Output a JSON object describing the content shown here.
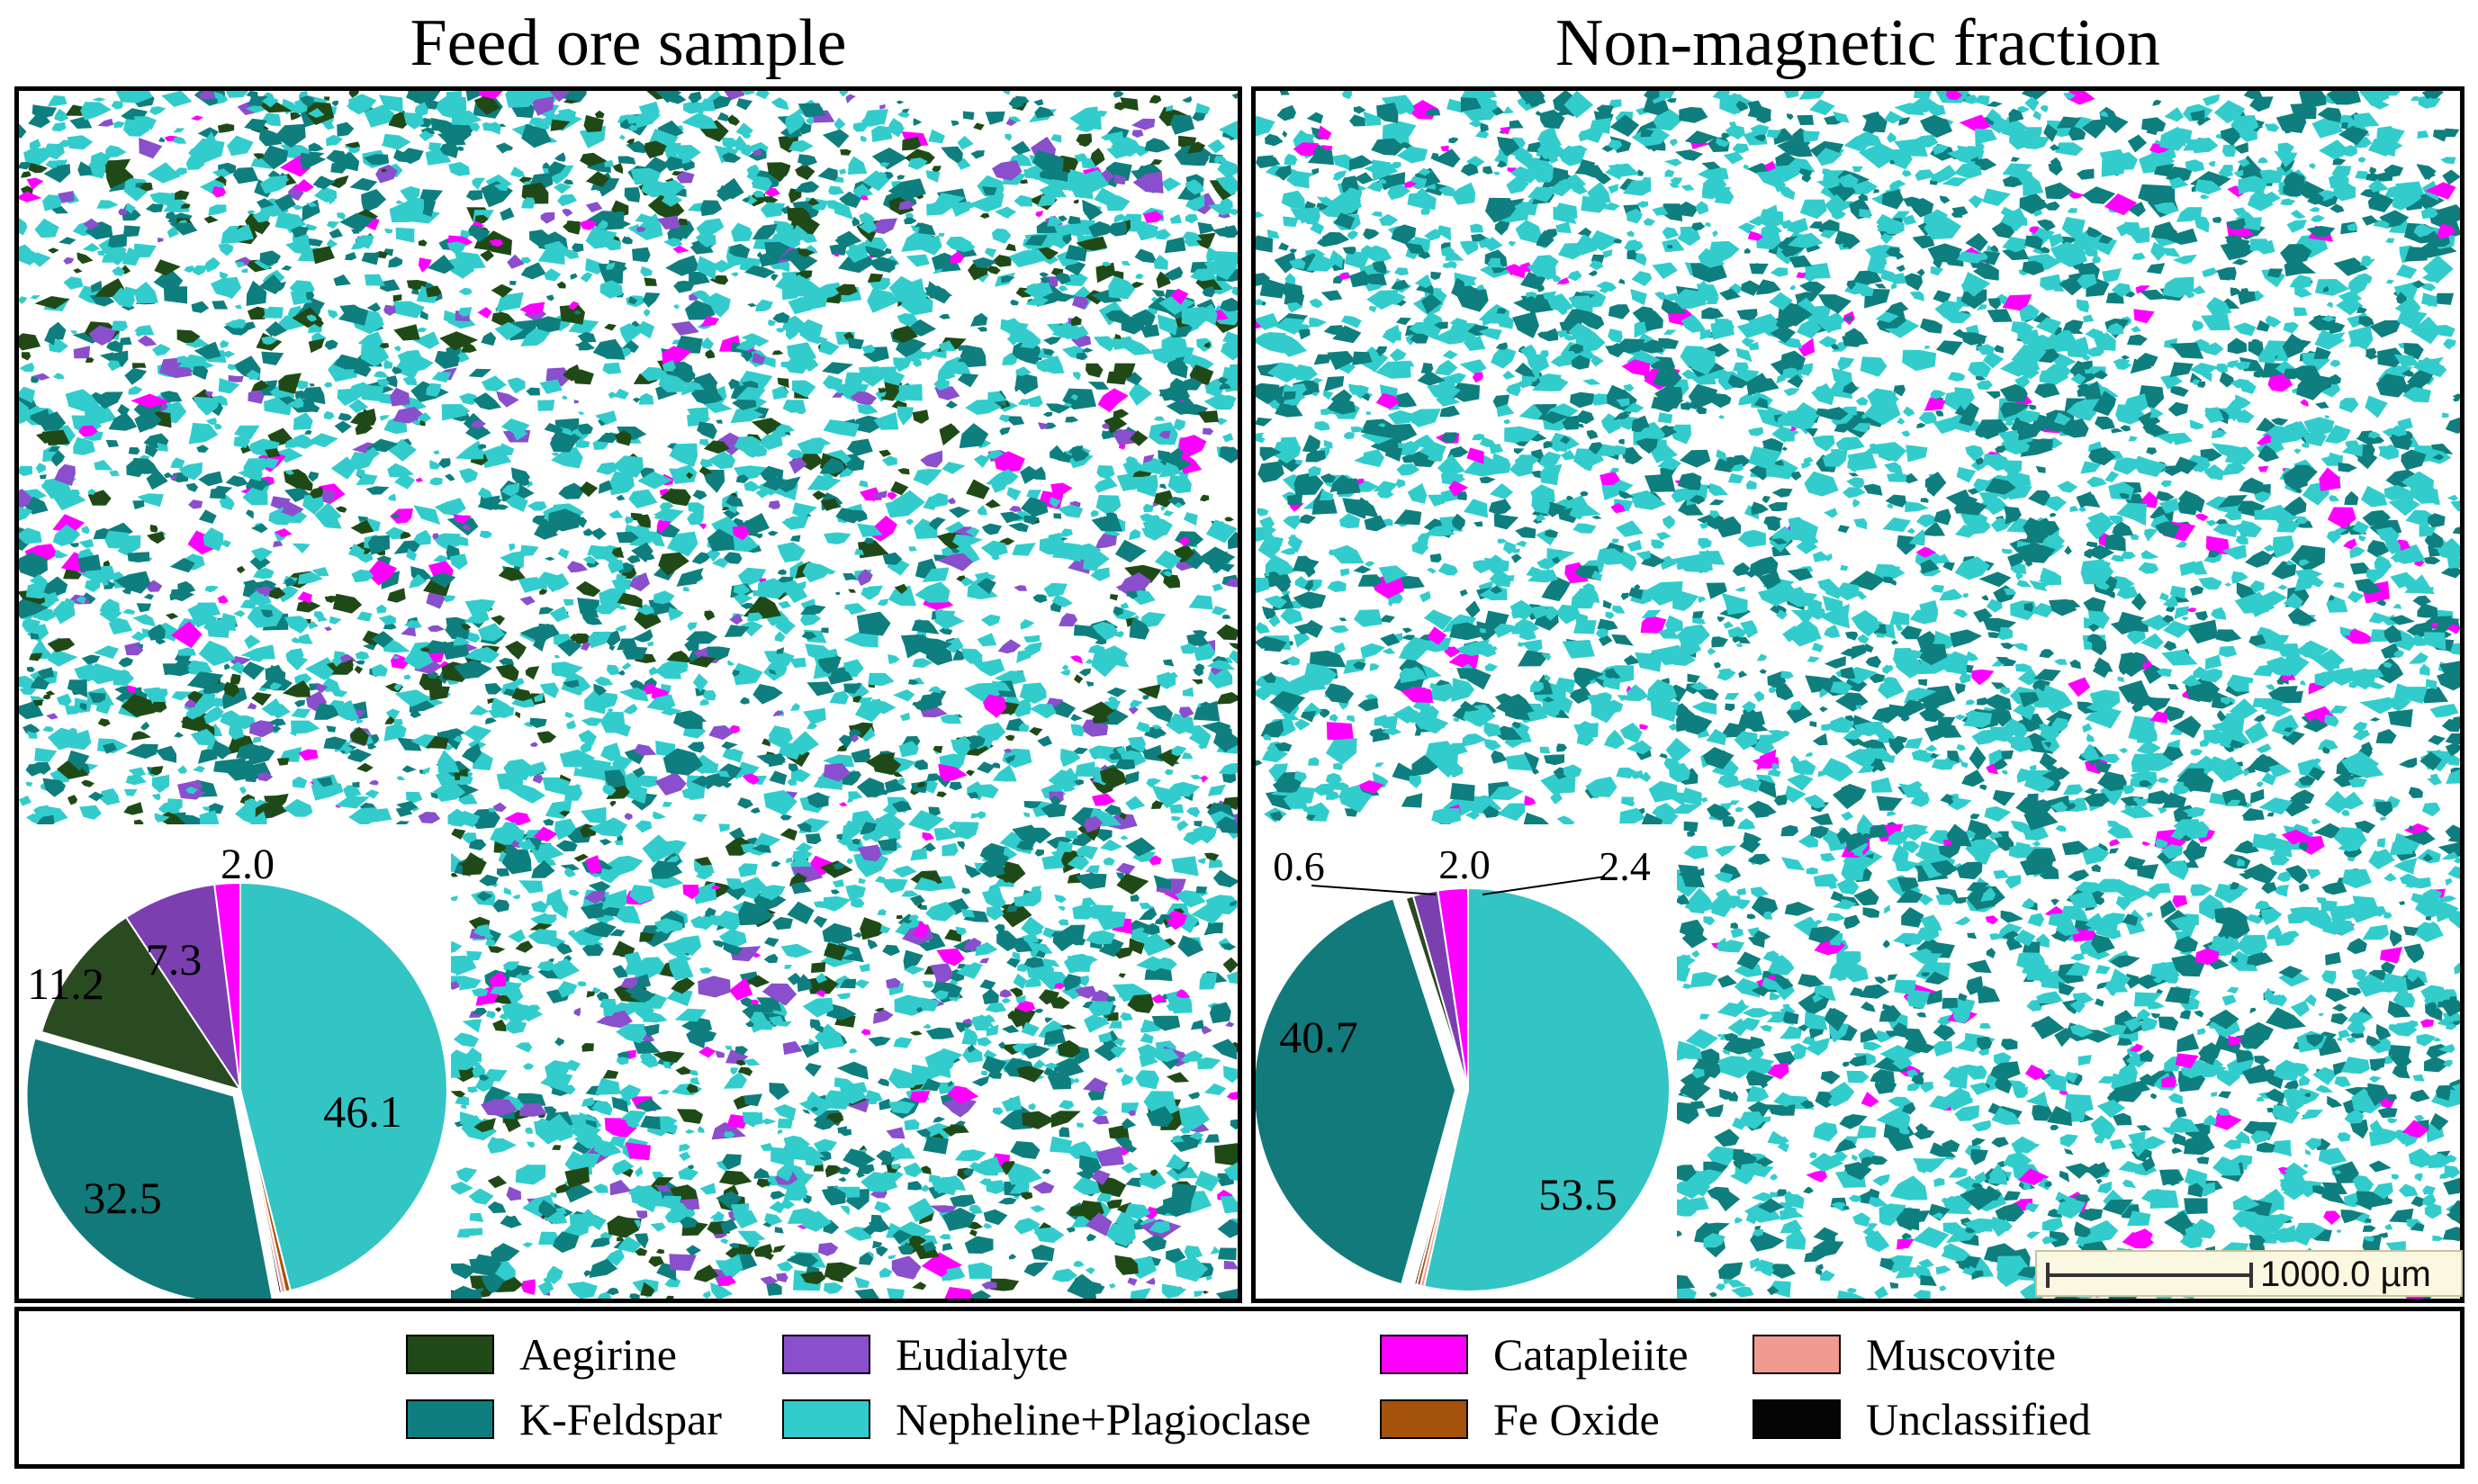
{
  "panels": [
    {
      "title": "Feed ore sample",
      "dominant_phases": [
        "Nepheline+Plagioclase",
        "K-Feldspar",
        "Aegirine",
        "Eudialyte",
        "Catapleiite"
      ]
    },
    {
      "title": "Non-magnetic fraction",
      "dominant_phases": [
        "Nepheline+Plagioclase",
        "K-Feldspar",
        "Catapleiite"
      ]
    }
  ],
  "scale_bar": {
    "label": "1000.0 µm"
  },
  "legend": {
    "items": [
      {
        "label": "Aegirine",
        "color": "#1f4a17",
        "icon": "legend-swatch"
      },
      {
        "label": "Eudialyte",
        "color": "#8a4fcc",
        "icon": "legend-swatch"
      },
      {
        "label": "Catapleiite",
        "color": "#ff00ff",
        "icon": "legend-swatch"
      },
      {
        "label": "Muscovite",
        "color": "#f09a92",
        "icon": "legend-swatch"
      },
      {
        "label": "K-Feldspar",
        "color": "#0f7e7e",
        "icon": "legend-swatch"
      },
      {
        "label": "Nepheline+Plagioclase",
        "color": "#33cccc",
        "icon": "legend-swatch"
      },
      {
        "label": "Fe Oxide",
        "color": "#a5520c",
        "icon": "legend-swatch"
      },
      {
        "label": "Unclassified",
        "color": "#050505",
        "icon": "legend-swatch"
      }
    ]
  },
  "chart_data": [
    {
      "type": "pie",
      "title": "Feed ore sample",
      "unit": "%",
      "slices": [
        {
          "name": "Nepheline+Plagioclase",
          "value": 46.1,
          "label": "46.1",
          "color": "#33c4c4"
        },
        {
          "name": "K-Feldspar",
          "value": 32.5,
          "label": "32.5",
          "color": "#127a7a"
        },
        {
          "name": "Aegirine",
          "value": 11.2,
          "label": "11.2",
          "color": "#2a4a22"
        },
        {
          "name": "Eudialyte",
          "value": 7.3,
          "label": "7.3",
          "color": "#7b3fb0"
        },
        {
          "name": "Catapleiite",
          "value": 2.0,
          "label": "2.0",
          "color": "#ff00ff"
        },
        {
          "name": "Fe Oxide",
          "value": 0.4,
          "label": "",
          "color": "#a5520c"
        },
        {
          "name": "Muscovite",
          "value": 0.3,
          "label": "",
          "color": "#f09a92"
        },
        {
          "name": "Unclassified",
          "value": 0.2,
          "label": "",
          "color": "#050505"
        }
      ]
    },
    {
      "type": "pie",
      "title": "Non-magnetic fraction",
      "unit": "%",
      "slices": [
        {
          "name": "Nepheline+Plagioclase",
          "value": 53.5,
          "label": "53.5",
          "color": "#33c4c4"
        },
        {
          "name": "K-Feldspar",
          "value": 40.7,
          "label": "40.7",
          "color": "#127a7a"
        },
        {
          "name": "Aegirine",
          "value": 0.6,
          "label": "0.6",
          "color": "#2a4a22"
        },
        {
          "name": "Eudialyte",
          "value": 2.0,
          "label": "2.0",
          "color": "#7b3fb0"
        },
        {
          "name": "Catapleiite",
          "value": 2.4,
          "label": "2.4",
          "color": "#ff00ff"
        },
        {
          "name": "Muscovite",
          "value": 0.3,
          "label": "",
          "color": "#f09a92"
        },
        {
          "name": "Fe Oxide",
          "value": 0.3,
          "label": "",
          "color": "#a5520c"
        },
        {
          "name": "Unclassified",
          "value": 0.2,
          "label": "",
          "color": "#050505"
        }
      ]
    }
  ]
}
